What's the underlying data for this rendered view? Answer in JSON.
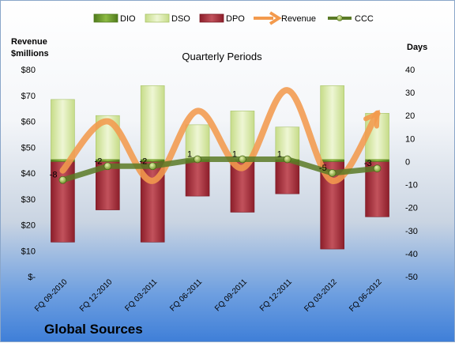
{
  "chart_data": {
    "type": "bar",
    "title": "Quarterly Periods",
    "company": "Global Sources",
    "left_axis_title": [
      "Revenue",
      "$millions"
    ],
    "right_axis_title": "Days",
    "left_ticks": [
      "$-",
      "$10",
      "$20",
      "$30",
      "$40",
      "$50",
      "$60",
      "$70",
      "$80"
    ],
    "right_ticks": [
      "-50",
      "-40",
      "-30",
      "-20",
      "-10",
      "0",
      "10",
      "20",
      "30",
      "40"
    ],
    "left_ylim": [
      0,
      80
    ],
    "right_ylim": [
      -50,
      40
    ],
    "categories": [
      "FQ 09-2010",
      "FQ 12-2010",
      "FQ 03-2011",
      "FQ 06-2011",
      "FQ 09-2011",
      "FQ 12-2011",
      "FQ 03-2012",
      "FQ 06-2012"
    ],
    "legend_position": "top",
    "series": [
      {
        "name": "DIO",
        "kind": "stacked-bar",
        "axis": "right",
        "color": "#6f9a2e",
        "values": [
          1,
          1,
          1,
          1,
          1,
          1,
          1,
          1
        ]
      },
      {
        "name": "DSO",
        "kind": "stacked-bar",
        "axis": "right",
        "color": "#d8e8a8",
        "values": [
          26,
          19,
          32,
          15,
          21,
          14,
          32,
          20
        ]
      },
      {
        "name": "DPO",
        "kind": "bar",
        "axis": "right",
        "color": "#b23a44",
        "values": [
          -35,
          -21,
          -35,
          -15,
          -22,
          -14,
          -38,
          -24
        ]
      },
      {
        "name": "Revenue",
        "kind": "line",
        "axis": "left",
        "color": "#f39a4d",
        "values": [
          41,
          60,
          37,
          64,
          42,
          72,
          37,
          63
        ]
      },
      {
        "name": "CCC",
        "kind": "line",
        "axis": "right",
        "color": "#5a7a26",
        "values": [
          -8,
          -2,
          -2,
          1,
          1,
          1,
          -5,
          -3
        ]
      }
    ],
    "ccc_labels": [
      "-8",
      "-2",
      "-2",
      "1",
      "1",
      "1",
      "-5",
      "-3"
    ],
    "grid": false
  }
}
